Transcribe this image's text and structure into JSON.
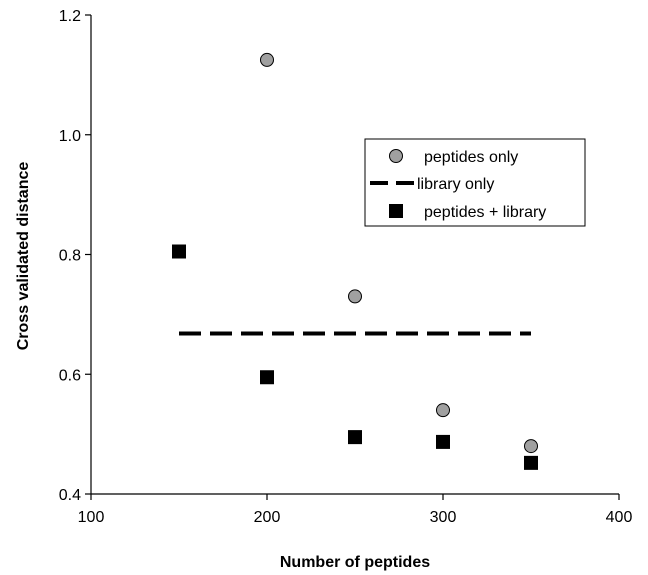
{
  "chart_data": {
    "type": "scatter",
    "xlabel": "Number of peptides",
    "ylabel": "Cross validated distance",
    "xlim": [
      100,
      400
    ],
    "ylim": [
      0.4,
      1.2
    ],
    "x_ticks": [
      "100",
      "200",
      "300",
      "400"
    ],
    "y_ticks": [
      "0.4",
      "0.6",
      "0.8",
      "1.0",
      "1.2"
    ],
    "grid": false,
    "legend_position": "right, upper-middle",
    "series": [
      {
        "name": "peptides only",
        "marker": "circle",
        "color": "#a0a0a0",
        "x": [
          200,
          250,
          300,
          350
        ],
        "y": [
          1.125,
          0.73,
          0.54,
          0.48
        ]
      },
      {
        "name": "library only",
        "style": "dashed-line",
        "color": "#000000",
        "x": [
          150,
          350
        ],
        "y": [
          0.668,
          0.668
        ]
      },
      {
        "name": "peptides + library",
        "marker": "square",
        "color": "#000000",
        "x": [
          150,
          200,
          250,
          300,
          350
        ],
        "y": [
          0.805,
          0.595,
          0.495,
          0.487,
          0.452
        ]
      }
    ]
  }
}
